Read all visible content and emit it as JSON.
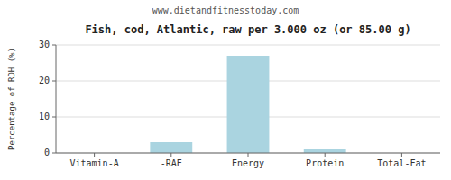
{
  "chart_data": {
    "type": "bar",
    "title": "Fish, cod, Atlantic, raw per 3.000 oz (or 85.00 g)",
    "subtitle": "www.dietandfitnesstoday.com",
    "categories": [
      "Vitamin-A",
      "-RAE",
      "Energy",
      "Protein",
      "Total-Fat"
    ],
    "values": [
      0,
      3,
      27,
      1,
      0
    ],
    "color": "#aad4e0",
    "ylabel": "Percentage of RDH (%)",
    "ylim": [
      0,
      30
    ],
    "yticks": [
      0,
      10,
      20,
      30
    ],
    "grid": true
  }
}
